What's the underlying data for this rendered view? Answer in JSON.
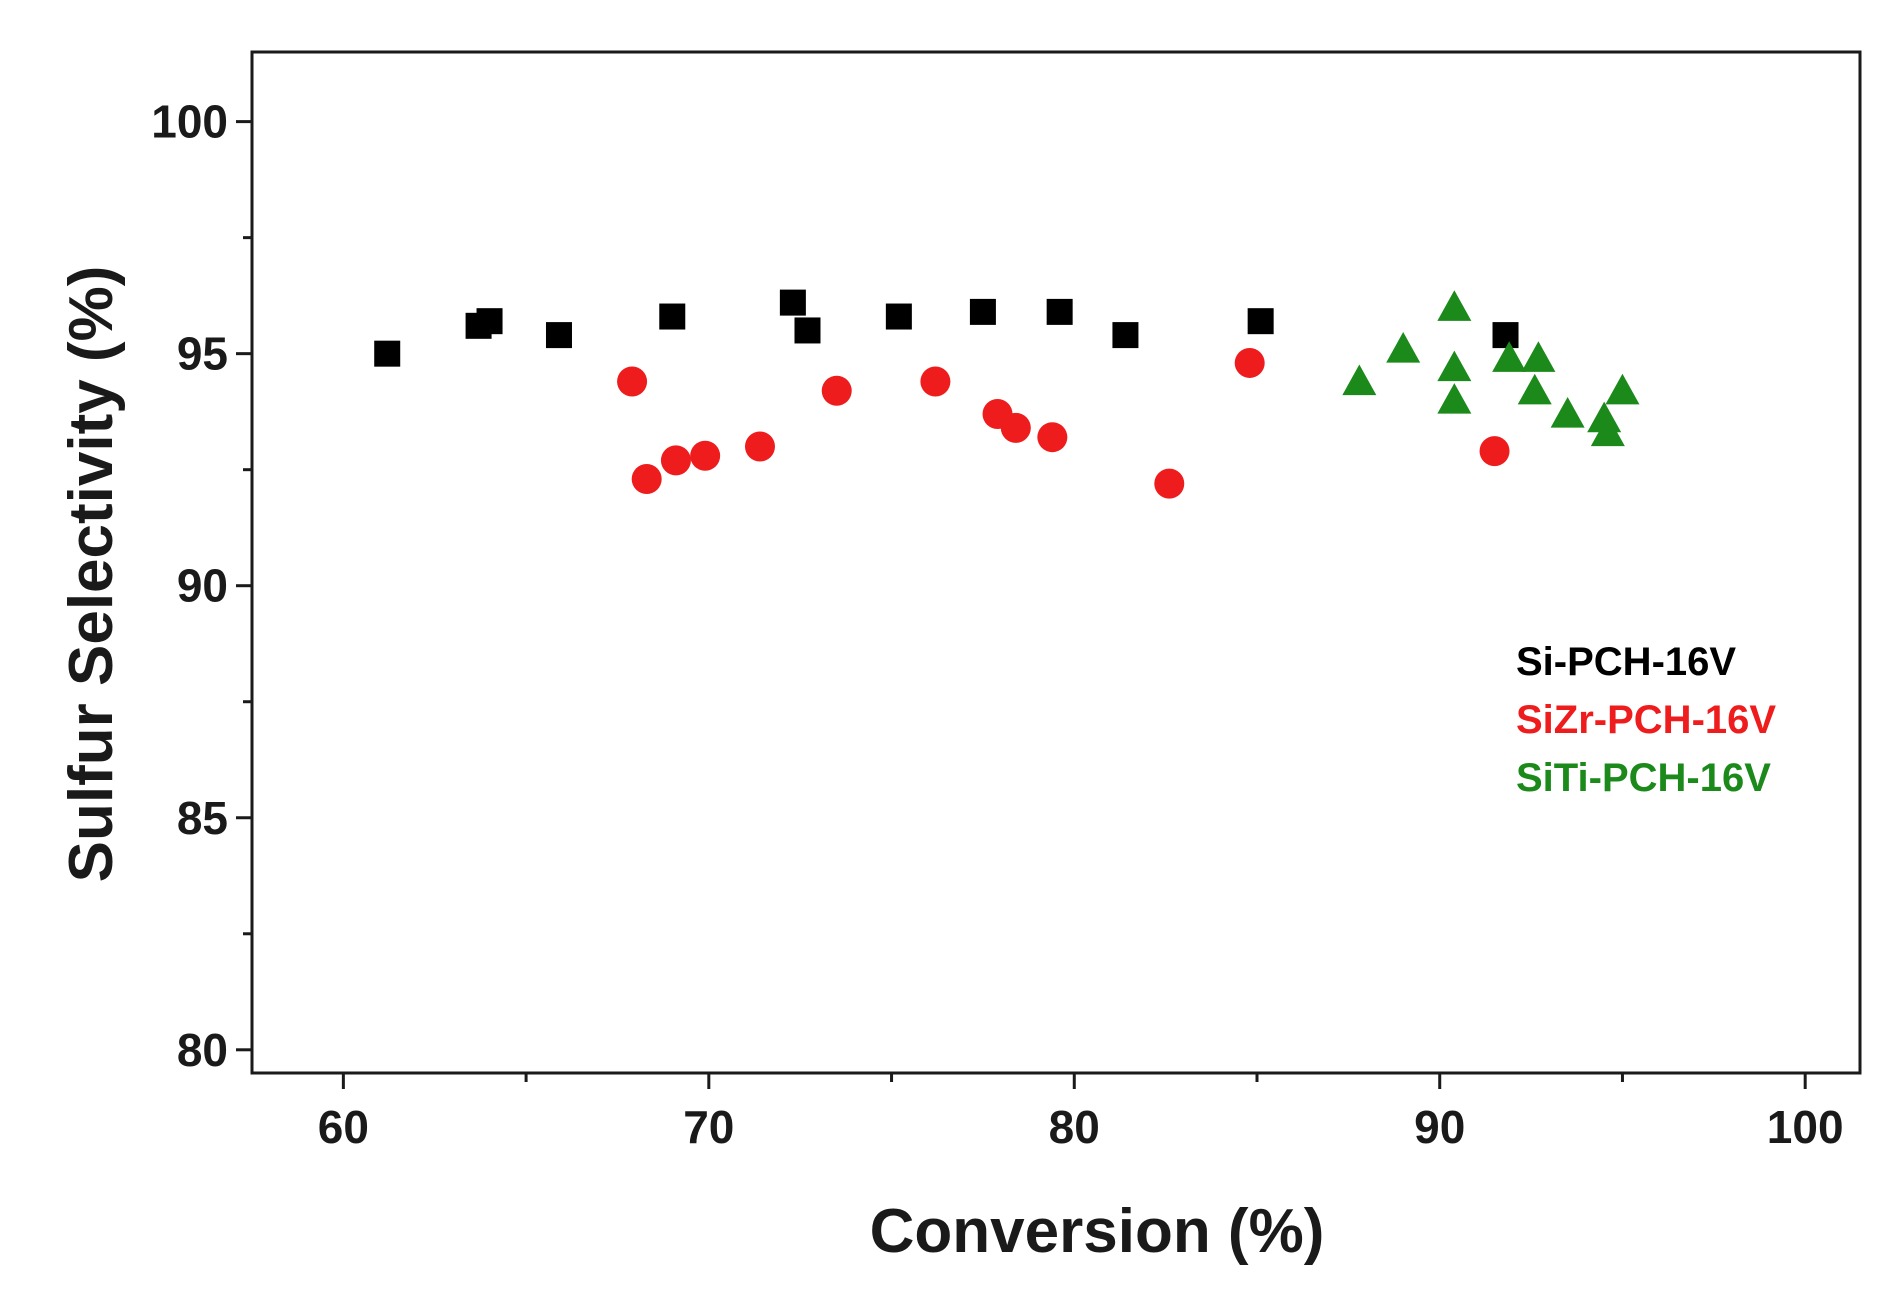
{
  "chart_data": {
    "type": "scatter",
    "title": "",
    "xlabel": "Conversion (%)",
    "ylabel": "Sulfur Selectivity (%)",
    "xlim": [
      57.5,
      101.5
    ],
    "ylim": [
      79.5,
      101.5
    ],
    "x_ticks": [
      60,
      70,
      80,
      90,
      100
    ],
    "x_minor_ticks": [
      65,
      75,
      85,
      95
    ],
    "y_ticks": [
      80,
      85,
      90,
      95,
      100
    ],
    "y_minor_ticks": [
      82.5,
      87.5,
      92.5,
      97.5
    ],
    "grid": false,
    "legend_position": "right",
    "series": [
      {
        "name": "Si-PCH-16V",
        "marker": "square",
        "color": "#000000",
        "points": [
          [
            61.2,
            95.0
          ],
          [
            63.7,
            95.6
          ],
          [
            64.0,
            95.7
          ],
          [
            65.9,
            95.4
          ],
          [
            69.0,
            95.8
          ],
          [
            72.3,
            96.1
          ],
          [
            72.7,
            95.5
          ],
          [
            75.2,
            95.8
          ],
          [
            77.5,
            95.9
          ],
          [
            79.6,
            95.9
          ],
          [
            81.4,
            95.4
          ],
          [
            85.1,
            95.7
          ],
          [
            91.8,
            95.4
          ]
        ]
      },
      {
        "name": "SiZr-PCH-16V",
        "marker": "circle",
        "color": "#ee1c1c",
        "points": [
          [
            67.9,
            94.4
          ],
          [
            68.3,
            92.3
          ],
          [
            69.1,
            92.7
          ],
          [
            69.9,
            92.8
          ],
          [
            71.4,
            93.0
          ],
          [
            73.5,
            94.2
          ],
          [
            76.2,
            94.4
          ],
          [
            77.9,
            93.7
          ],
          [
            78.4,
            93.4
          ],
          [
            79.4,
            93.2
          ],
          [
            82.6,
            92.2
          ],
          [
            84.8,
            94.8
          ],
          [
            91.5,
            92.9
          ]
        ]
      },
      {
        "name": "SiTi-PCH-16V",
        "marker": "triangle",
        "color": "#1b8a1b",
        "points": [
          [
            87.8,
            94.4
          ],
          [
            89.0,
            95.1
          ],
          [
            90.4,
            96.0
          ],
          [
            90.4,
            94.7
          ],
          [
            90.4,
            94.0
          ],
          [
            91.9,
            94.9
          ],
          [
            92.7,
            94.9
          ],
          [
            92.6,
            94.2
          ],
          [
            93.5,
            93.7
          ],
          [
            94.5,
            93.6
          ],
          [
            94.6,
            93.3
          ],
          [
            95.0,
            94.2
          ]
        ]
      }
    ]
  }
}
